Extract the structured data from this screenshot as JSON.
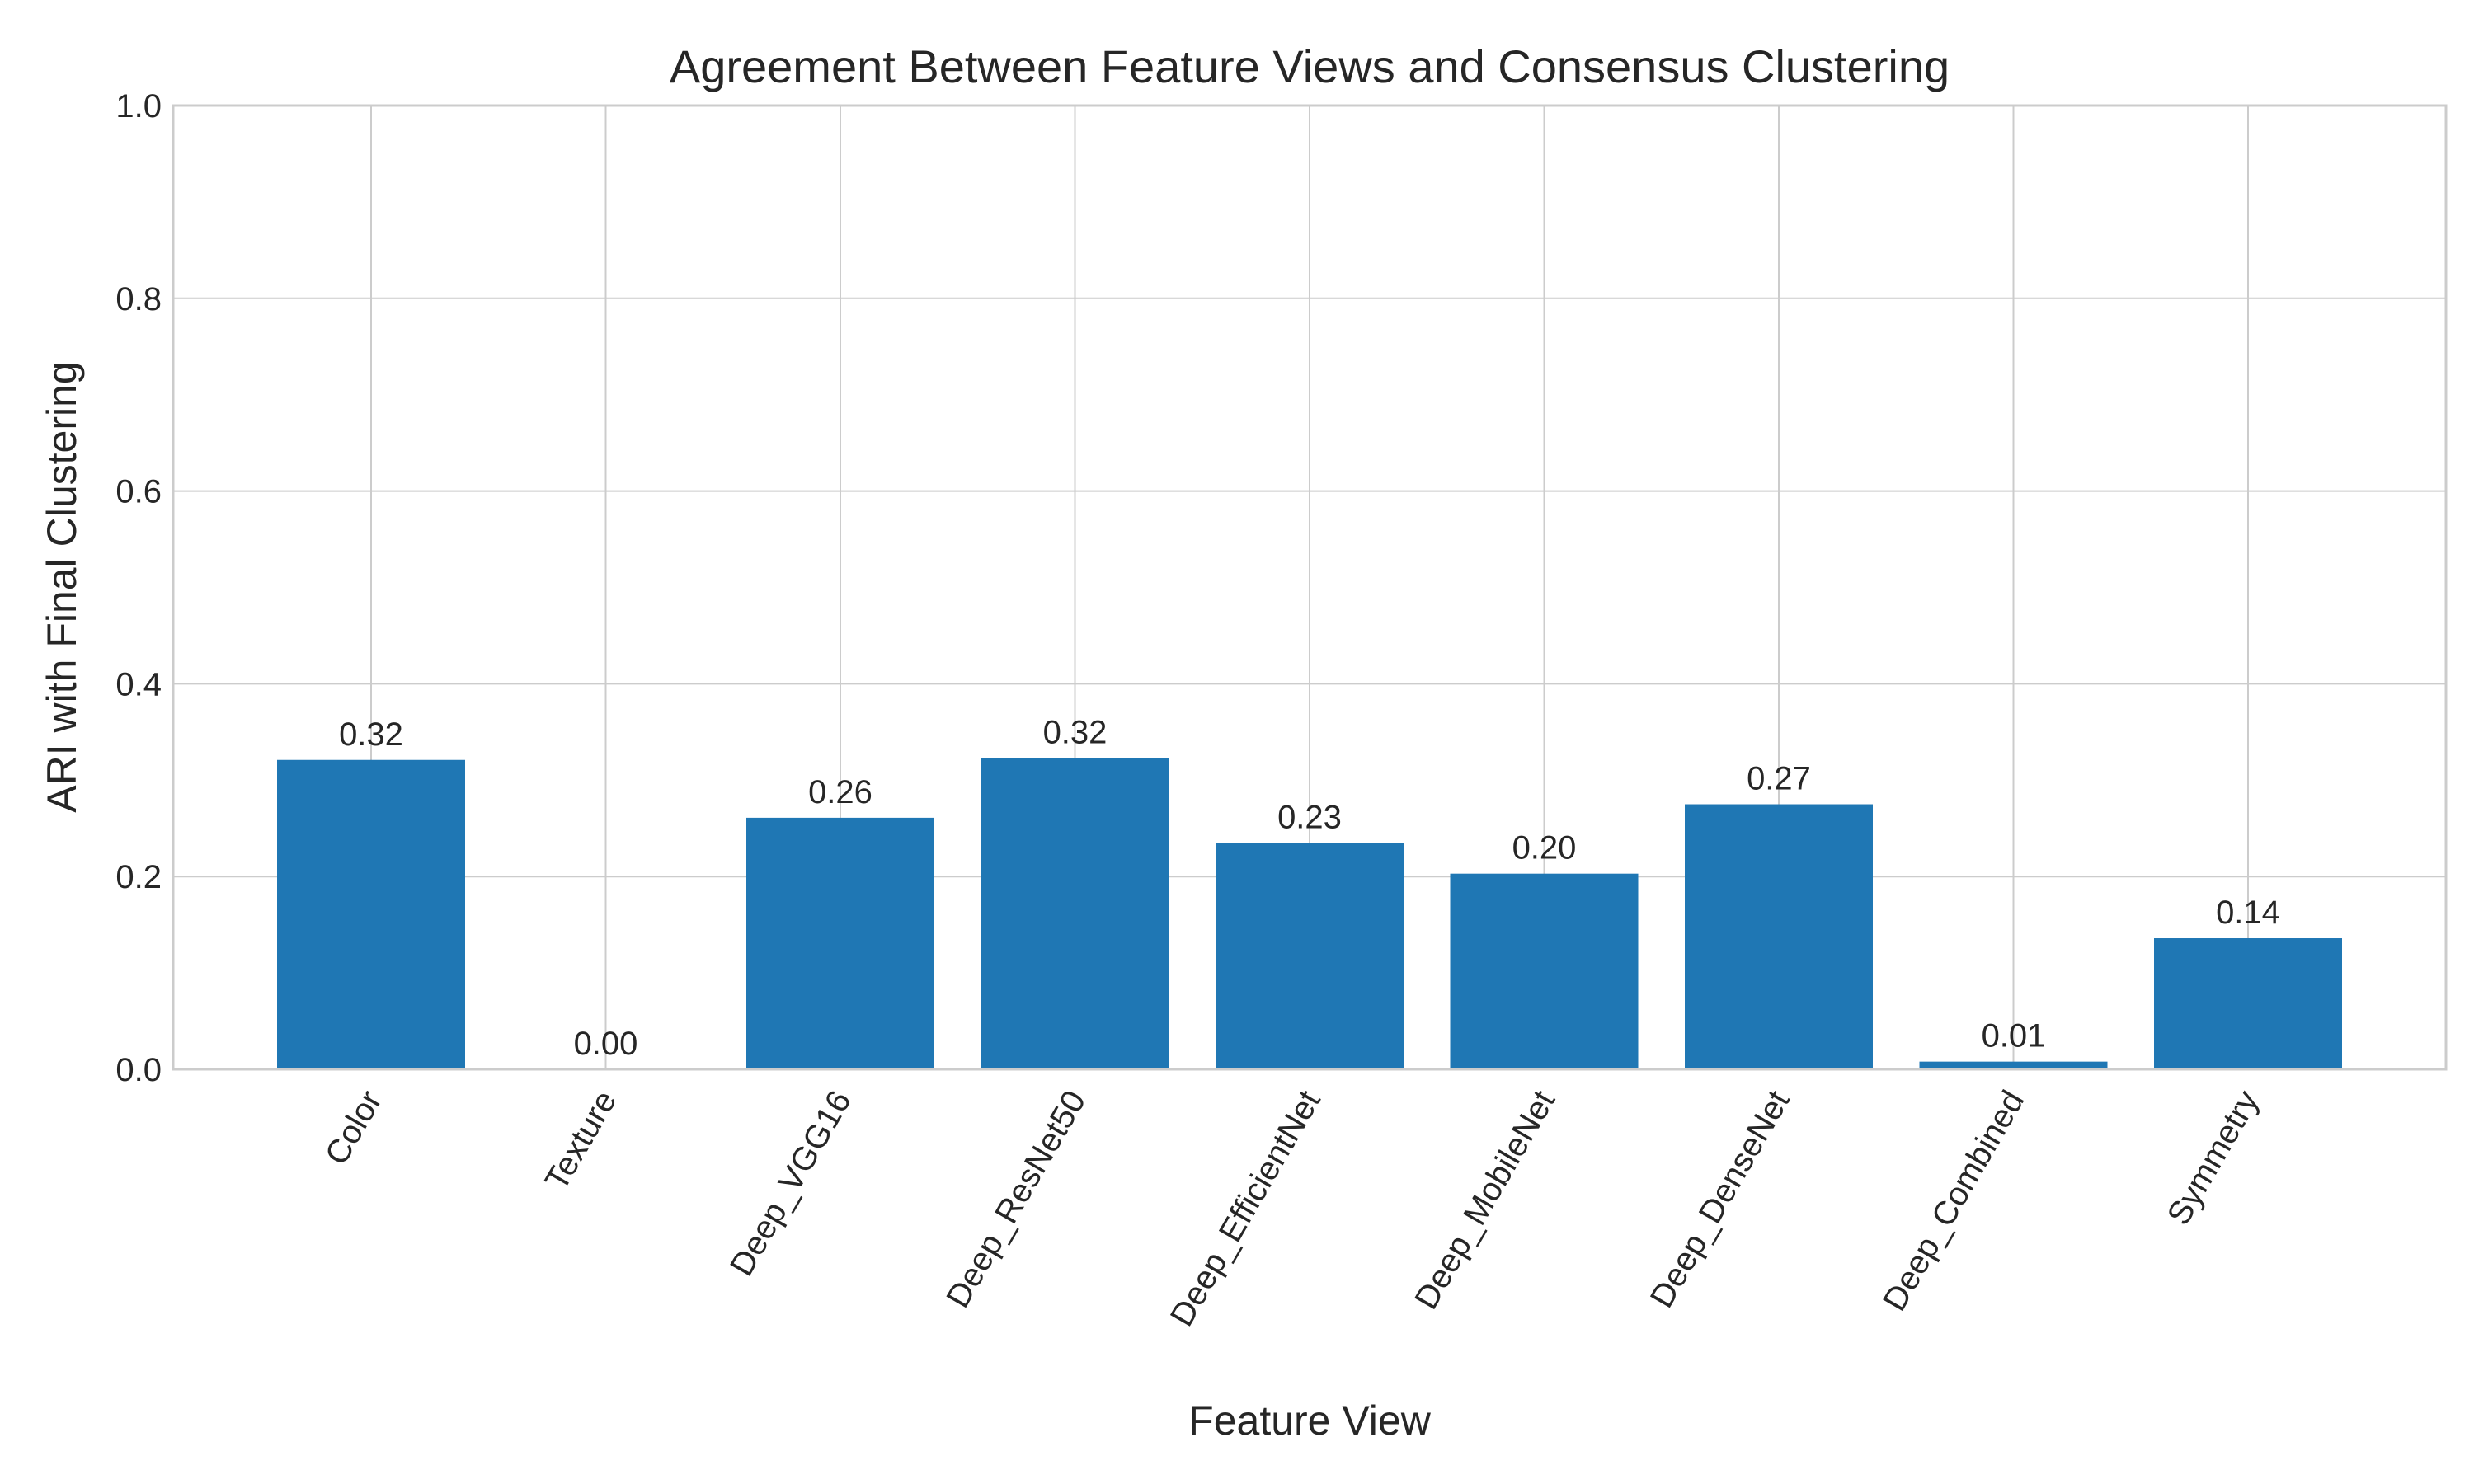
{
  "chart_data": {
    "type": "bar",
    "title": "Agreement Between Feature Views and Consensus Clustering",
    "xlabel": "Feature View",
    "ylabel": "ARI with Final Clustering",
    "categories": [
      "Color",
      "Texture",
      "Deep_VGG16",
      "Deep_ResNet50",
      "Deep_EfficientNet",
      "Deep_MobileNet",
      "Deep_DenseNet",
      "Deep_Combined",
      "Symmetry"
    ],
    "values": [
      0.321,
      0.0,
      0.261,
      0.323,
      0.235,
      0.203,
      0.275,
      0.008,
      0.136
    ],
    "value_labels": [
      "0.32",
      "0.00",
      "0.26",
      "0.32",
      "0.23",
      "0.20",
      "0.27",
      "0.01",
      "0.14"
    ],
    "ylim": [
      0,
      1.0
    ],
    "yticks": [
      0.0,
      0.2,
      0.4,
      0.6,
      0.8,
      1.0
    ],
    "ytick_labels": [
      "0.0",
      "0.2",
      "0.4",
      "0.6",
      "0.8",
      "1.0"
    ],
    "grid": true,
    "bar_color": "#1f77b4"
  }
}
